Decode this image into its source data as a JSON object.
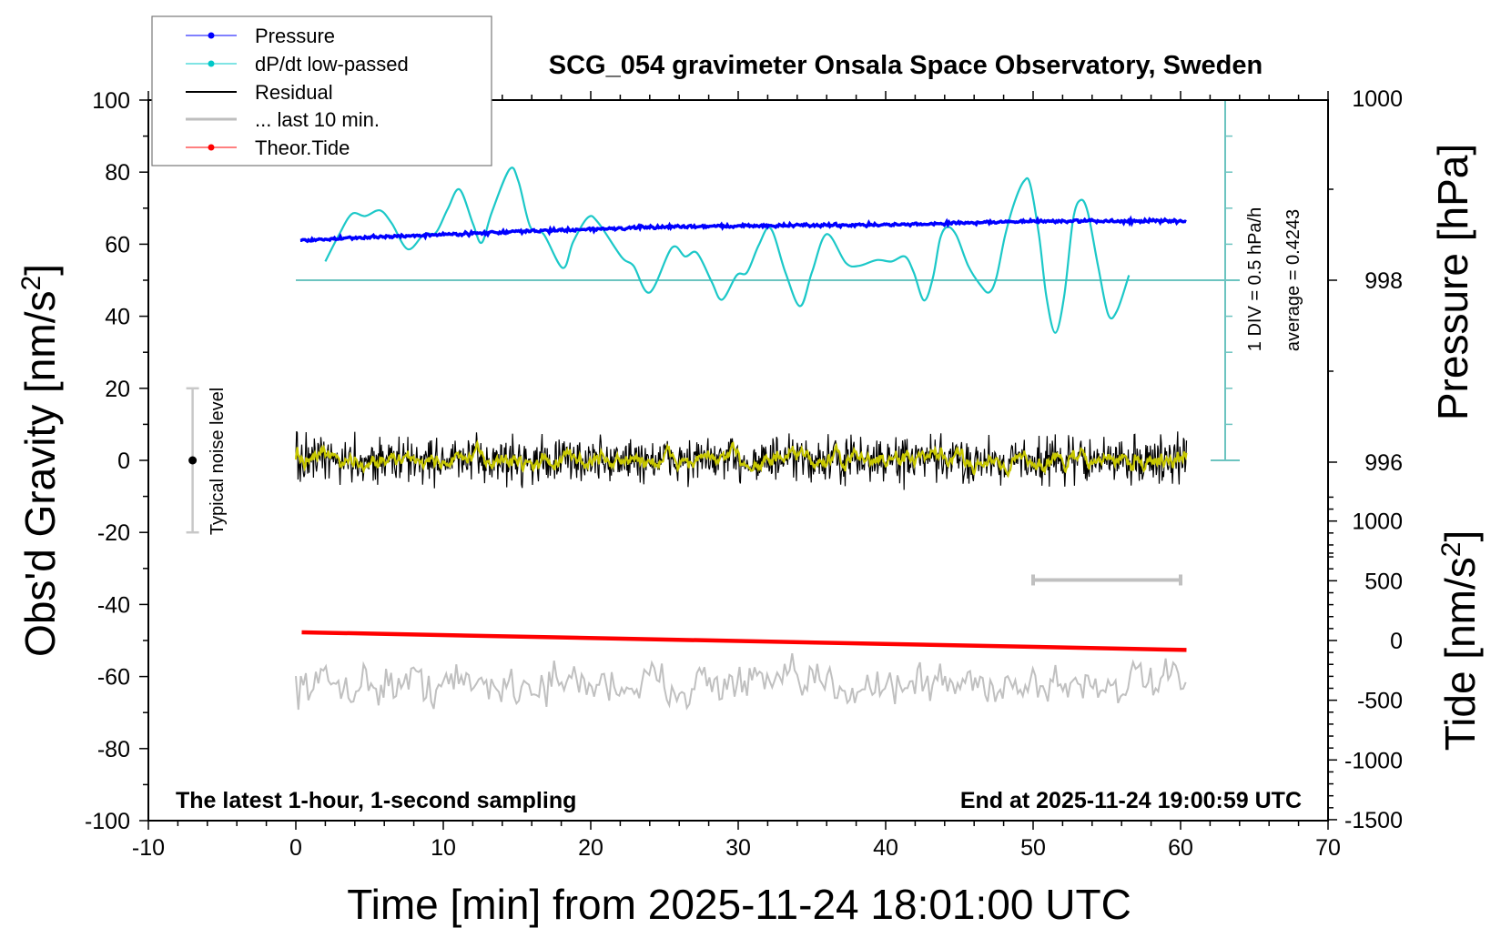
{
  "chart_data": {
    "type": "line",
    "title": "SCG_054 gravimeter Onsala Space Observatory, Sweden",
    "xlabel": "Time [min] from 2025-11-24 18:01:00 UTC",
    "ylabel_left_main": "Obs'd Gravity [nm/s",
    "ylabel_left_sup": "2",
    "ylabel_left_end": "]",
    "ylabel_right_pressure": "Pressure [hPa]",
    "ylabel_right_tide_main": "Tide [nm/s",
    "ylabel_right_tide_sup": "2",
    "ylabel_right_tide_end": "]",
    "xlim": [
      -10,
      70
    ],
    "ylim": [
      -100,
      100
    ],
    "pressure_lim_note": "998 hPa at gravity 50, 2 hPa per 25.25 gravity units",
    "tide_lim": [
      -1500,
      1000
    ],
    "x_ticks": [
      "-10",
      "0",
      "10",
      "20",
      "30",
      "40",
      "50",
      "60",
      "70"
    ],
    "y_ticks": [
      "100",
      "80",
      "60",
      "40",
      "20",
      "0",
      "-20",
      "-40",
      "-60",
      "-80",
      "-100"
    ],
    "pressure_ticks": [
      "1000",
      "998",
      "996"
    ],
    "tide_ticks": [
      "1000",
      "500",
      "0",
      "-500",
      "-1000",
      "-1500"
    ],
    "footer_left": "The latest 1-hour, 1-second sampling",
    "footer_right": "End at 2025-11-24 19:00:59 UTC",
    "dpdt_scale_label": "1 DIV = 0.5 hPa/h",
    "dpdt_average_label": "average = 0.4243",
    "noise_label": "Typical noise level",
    "noise_level": [
      -20,
      20
    ],
    "last10_marker": [
      50,
      60
    ],
    "legend": {
      "position": "top-left",
      "entries": [
        {
          "label": "Pressure",
          "color": "#0000ff"
        },
        {
          "label": "dP/dt low-passed",
          "color": "#00c8c8"
        },
        {
          "label": "Residual",
          "color": "#000000"
        },
        {
          "label": "... last 10 min.",
          "color": "#bebebe"
        },
        {
          "label": "Theor.Tide",
          "color": "#ff0000"
        }
      ]
    },
    "colors": {
      "pressure": "#0000ff",
      "dpdt": "#1cc8c8",
      "dpdt_axis": "#6cc4c0",
      "residual": "#000000",
      "residual_smooth": "#c8c800",
      "last10": "#c0c0c0",
      "tide": "#ff0000"
    },
    "series": [
      {
        "name": "Pressure",
        "unit": "hPa",
        "x": [
          0.3,
          6.4,
          16,
          25.9,
          38.6,
          41.4,
          44.8,
          51,
          60.4
        ],
        "y": [
          998.44,
          998.48,
          998.54,
          998.59,
          998.61,
          998.61,
          998.63,
          998.65,
          998.65
        ]
      },
      {
        "name": "dP/dt low-passed",
        "unit": "hPa/h",
        "x": [
          2.0,
          2.9,
          3.8,
          4.7,
          5.7,
          6.5,
          7.6,
          8.7,
          9.5,
          10.3,
          11.1,
          12.0,
          12.6,
          13.3,
          14.5,
          15.1,
          15.9,
          16.8,
          18.1,
          18.8,
          19.8,
          20.5,
          22.1,
          22.9,
          24.0,
          25.5,
          26.4,
          27.2,
          28.2,
          28.9,
          29.9,
          30.6,
          31.4,
          32.2,
          33.2,
          34.2,
          35.0,
          36.0,
          37.3,
          38.2,
          39.4,
          40.4,
          41.3,
          41.9,
          42.6,
          43.2,
          43.7,
          44.2,
          44.8,
          45.6,
          46.4,
          47.0,
          47.5,
          48.1,
          48.8,
          49.4,
          49.8,
          50.4,
          50.9,
          51.5,
          52.1,
          52.7,
          53.2,
          53.7,
          54.4,
          55.1,
          55.7,
          56.5
        ],
        "y": [
          0.26,
          0.62,
          0.92,
          0.89,
          0.97,
          0.79,
          0.43,
          0.64,
          0.66,
          0.99,
          1.26,
          0.79,
          0.52,
          0.95,
          1.54,
          1.37,
          0.74,
          0.64,
          0.17,
          0.53,
          0.87,
          0.8,
          0.32,
          0.2,
          -0.17,
          0.45,
          0.33,
          0.38,
          -0.02,
          -0.27,
          0.07,
          0.11,
          0.49,
          0.72,
          0.11,
          -0.36,
          0.11,
          0.64,
          0.24,
          0.2,
          0.28,
          0.26,
          0.33,
          0.11,
          -0.28,
          0.03,
          0.58,
          0.74,
          0.62,
          0.2,
          -0.06,
          -0.17,
          0.03,
          0.62,
          1.12,
          1.38,
          1.33,
          0.62,
          -0.23,
          -0.73,
          -0.23,
          0.83,
          1.11,
          0.95,
          0.2,
          -0.48,
          -0.42,
          0.07
        ]
      },
      {
        "name": "Residual",
        "unit": "nm/s2",
        "x": [
          0,
          60.4
        ],
        "mean": 0,
        "amplitude": 6
      },
      {
        "name": "... last 10 min.",
        "unit": "nm/s2",
        "x": [
          0,
          60.4
        ],
        "mean": -62,
        "amplitude": 5
      },
      {
        "name": "Theor.Tide",
        "unit": "nm/s2",
        "x": [
          0.4,
          60.4
        ],
        "y": [
          69,
          -79
        ]
      }
    ]
  }
}
